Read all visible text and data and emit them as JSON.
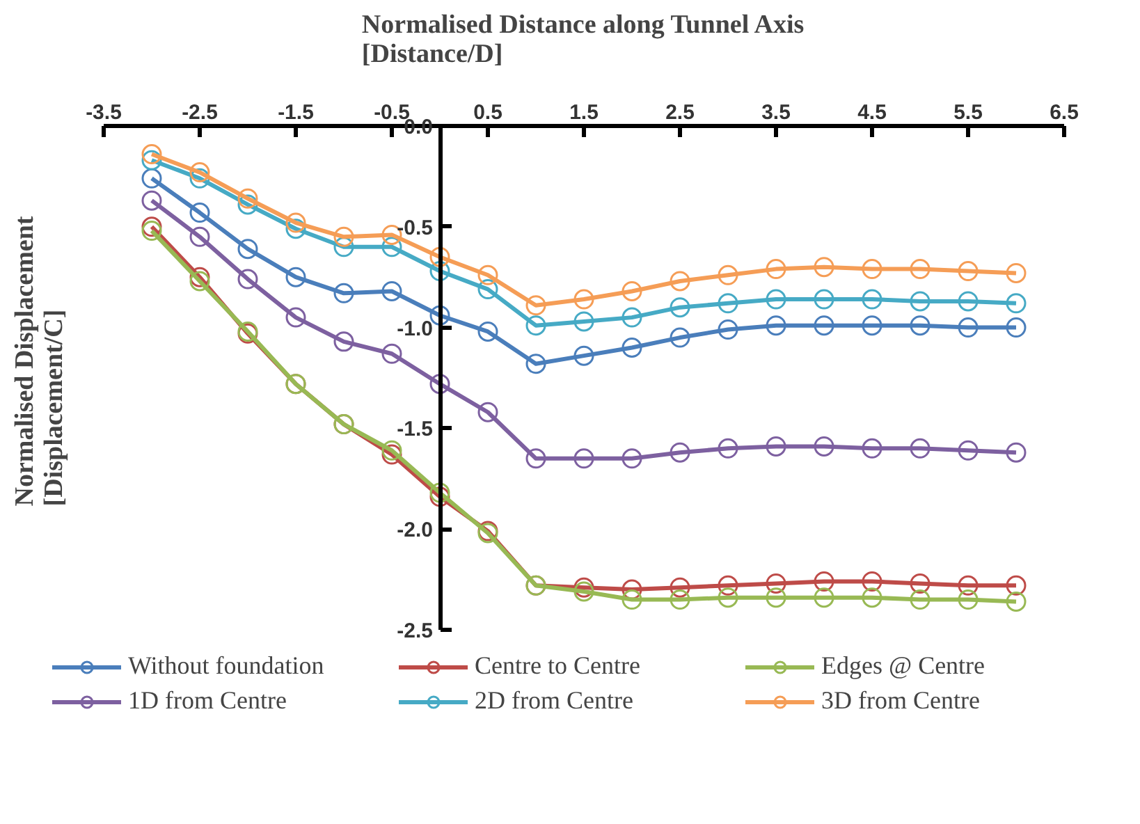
{
  "chart_data": {
    "type": "line",
    "xlabel": "Normalised Distance along Tunnel Axis\n[Distance/D]",
    "ylabel": "Normalised Displacement\n[Displacement/C]",
    "x": [
      -3,
      -2.5,
      -2,
      -1.5,
      -1,
      -0.5,
      0,
      0.5,
      1,
      1.5,
      2,
      2.5,
      3,
      3.5,
      4,
      4.5,
      5,
      5.5,
      6
    ],
    "xlim": [
      -3.5,
      6.5
    ],
    "xticks": [
      -3.5,
      -2.5,
      -1.5,
      -0.5,
      0.5,
      1.5,
      2.5,
      3.5,
      4.5,
      5.5,
      6.5
    ],
    "ylim": [
      -2.5,
      0
    ],
    "yticks": [
      {
        "value": 0,
        "label": "0.0"
      },
      -0.5,
      {
        "value": -1,
        "label": "-1.0"
      },
      -1.5,
      {
        "value": -2,
        "label": "-2.0"
      },
      -2.5
    ],
    "grid": false,
    "legend": "bottom",
    "marker": "circle",
    "line_style": "solid",
    "series": [
      {
        "name": "Without foundation",
        "color": "#4a7ebb",
        "values": [
          -0.26,
          -0.43,
          -0.61,
          -0.75,
          -0.83,
          -0.82,
          -0.94,
          -1.02,
          -1.18,
          -1.14,
          -1.1,
          -1.05,
          -1.01,
          -0.99,
          -0.99,
          -0.99,
          -0.99,
          -1.0,
          -1.0
        ]
      },
      {
        "name": "Centre to Centre",
        "color": "#be4b48",
        "values": [
          -0.5,
          -0.75,
          -1.03,
          -1.28,
          -1.48,
          -1.63,
          -1.84,
          -2.01,
          -2.28,
          -2.29,
          -2.3,
          -2.29,
          -2.28,
          -2.27,
          -2.26,
          -2.26,
          -2.27,
          -2.28,
          -2.28
        ]
      },
      {
        "name": "Edges @ Centre",
        "color": "#98b954",
        "values": [
          -0.52,
          -0.77,
          -1.02,
          -1.28,
          -1.48,
          -1.61,
          -1.82,
          -2.02,
          -2.28,
          -2.31,
          -2.35,
          -2.35,
          -2.34,
          -2.34,
          -2.34,
          -2.34,
          -2.35,
          -2.35,
          -2.36
        ]
      },
      {
        "name": "1D from Centre",
        "color": "#7d60a0",
        "values": [
          -0.37,
          -0.55,
          -0.76,
          -0.95,
          -1.07,
          -1.13,
          -1.28,
          -1.42,
          -1.65,
          -1.65,
          -1.65,
          -1.62,
          -1.6,
          -1.59,
          -1.59,
          -1.6,
          -1.6,
          -1.61,
          -1.62
        ]
      },
      {
        "name": "2D from Centre",
        "color": "#46aac5",
        "values": [
          -0.17,
          -0.26,
          -0.39,
          -0.51,
          -0.6,
          -0.6,
          -0.72,
          -0.81,
          -0.99,
          -0.97,
          -0.95,
          -0.9,
          -0.88,
          -0.86,
          -0.86,
          -0.86,
          -0.87,
          -0.87,
          -0.88
        ]
      },
      {
        "name": "3D from Centre",
        "color": "#f59d56",
        "values": [
          -0.14,
          -0.23,
          -0.36,
          -0.48,
          -0.55,
          -0.54,
          -0.65,
          -0.74,
          -0.89,
          -0.86,
          -0.82,
          -0.77,
          -0.74,
          -0.71,
          -0.7,
          -0.71,
          -0.71,
          -0.72,
          -0.73
        ]
      }
    ]
  }
}
